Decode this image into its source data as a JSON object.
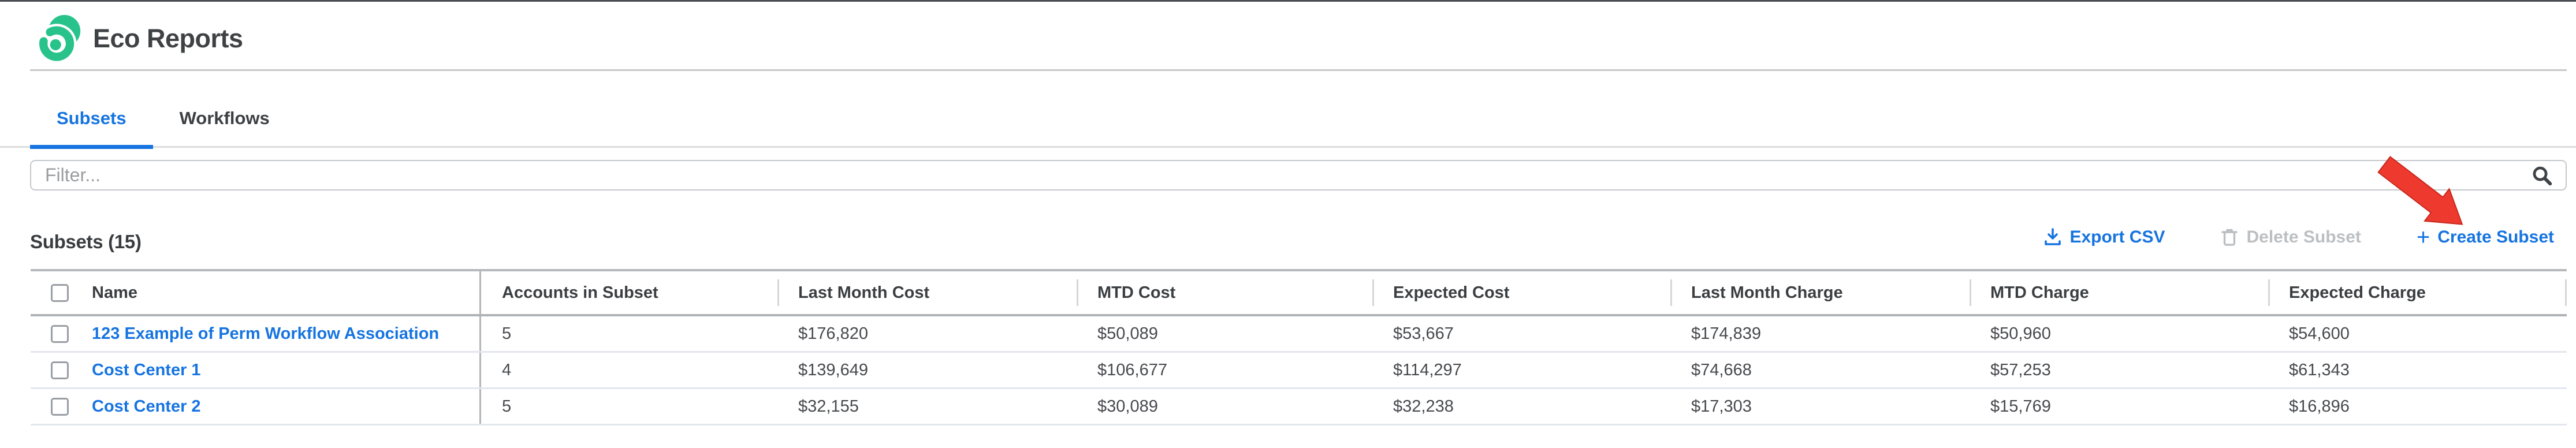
{
  "app": {
    "title": "Eco Reports"
  },
  "tabs": [
    {
      "label": "Subsets",
      "active": true
    },
    {
      "label": "Workflows",
      "active": false
    }
  ],
  "filter": {
    "placeholder": "Filter...",
    "icon": "search-icon"
  },
  "section": {
    "heading": "Subsets (15)",
    "actions": [
      {
        "label": "Export CSV",
        "icon": "download-icon",
        "state": "enabled"
      },
      {
        "label": "Delete Subset",
        "icon": "trash-icon",
        "state": "disabled"
      },
      {
        "label": "Create Subset",
        "icon": "plus-icon",
        "state": "enabled"
      }
    ],
    "annotation": {
      "type": "red-arrow",
      "points_to": "Create Subset"
    }
  },
  "table": {
    "columns": [
      "Name",
      "Accounts in Subset",
      "Last Month Cost",
      "MTD Cost",
      "Expected Cost",
      "Last Month Charge",
      "MTD Charge",
      "Expected Charge"
    ],
    "rows": [
      {
        "name": "123 Example of Perm Workflow Association",
        "values": [
          "5",
          "$176,820",
          "$50,089",
          "$53,667",
          "$174,839",
          "$50,960",
          "$54,600"
        ]
      },
      {
        "name": "Cost Center 1",
        "values": [
          "4",
          "$139,649",
          "$106,677",
          "$114,297",
          "$74,668",
          "$57,253",
          "$61,343"
        ]
      },
      {
        "name": "Cost Center 2",
        "values": [
          "5",
          "$32,155",
          "$30,089",
          "$32,238",
          "$17,303",
          "$15,769",
          "$16,896"
        ]
      }
    ]
  },
  "colors": {
    "accent_blue": "#1674e0",
    "brand_green": "#28c38b",
    "annotation_red": "#ee3a2e",
    "disabled_gray": "#bcbfc2",
    "text_dark": "#3f4245"
  }
}
